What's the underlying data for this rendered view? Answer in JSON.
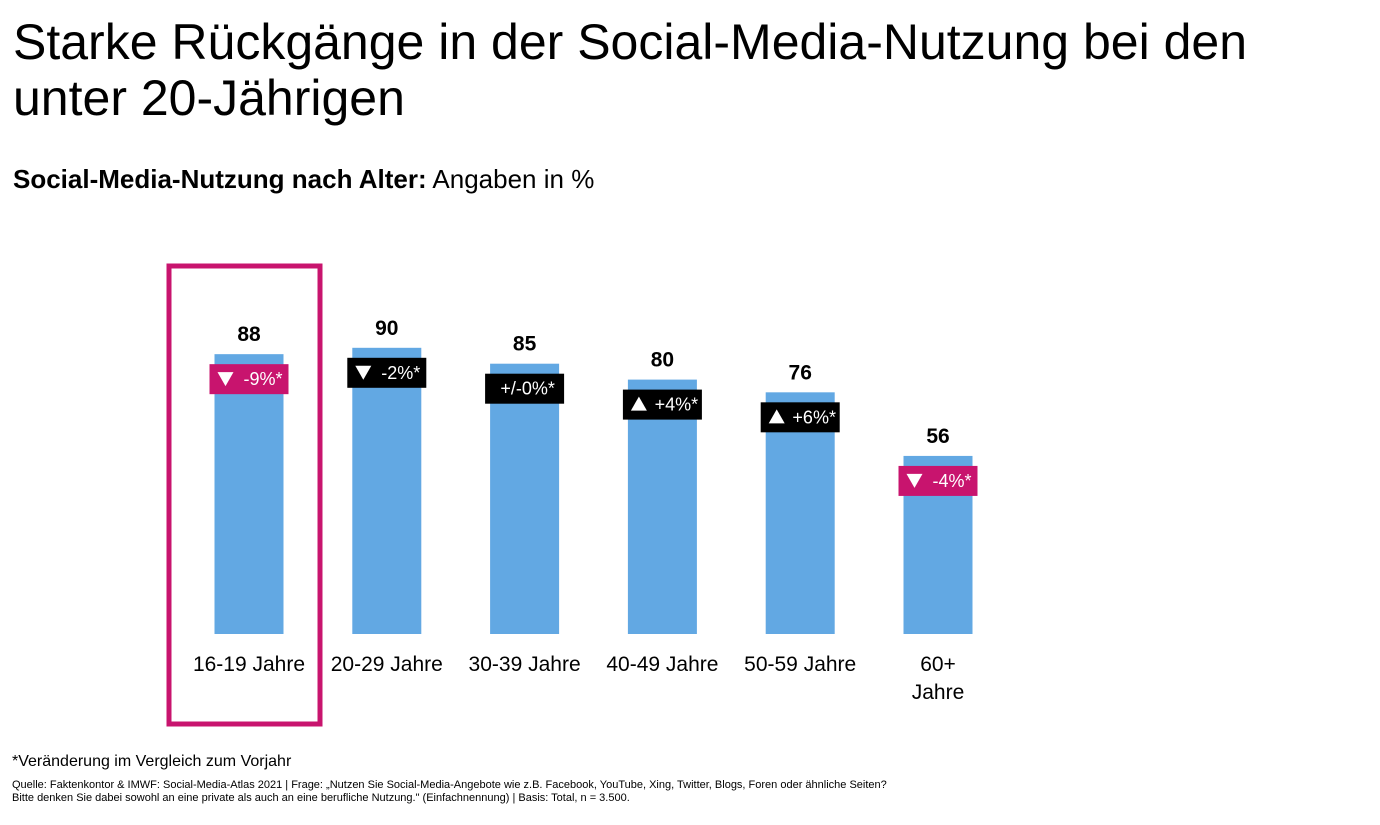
{
  "title": "Starke Rückgänge in der Social-Media-Nutzung bei den unter 20-Jährigen",
  "subtitle": {
    "bold": "Social-Media-Nutzung nach Alter:",
    "normal": " Angaben in %"
  },
  "footnote": "*Veränderung im Vergleich zum Vorjahr",
  "source": {
    "line1": "Quelle: Faktenkontor & IMWF: Social-Media-Atlas 2021 | Frage: „Nutzen Sie Social-Media-Angebote wie z.B. Facebook, YouTube, Xing, Twitter, Blogs, Foren oder ähnliche Seiten?",
    "line2": "Bitte denken Sie dabei sowohl an eine private als auch an eine berufliche Nutzung.\" (Einfachnennung) | Basis: Total, n = 3.500."
  },
  "colors": {
    "bar": "#62a8e3",
    "highlight": "#c8146e",
    "negative_badge": "#c8146e",
    "neutral_badge": "#000000"
  },
  "chart_data": {
    "type": "bar",
    "categories": [
      "16-19 Jahre",
      "20-29 Jahre",
      "30-39 Jahre",
      "40-49 Jahre",
      "50-59 Jahre",
      "60+ Jahre"
    ],
    "category_lines": [
      [
        "16-19 Jahre"
      ],
      [
        "20-29 Jahre"
      ],
      [
        "30-39 Jahre"
      ],
      [
        "40-49 Jahre"
      ],
      [
        "50-59 Jahre"
      ],
      [
        "60+",
        "Jahre"
      ]
    ],
    "values": [
      88,
      90,
      85,
      80,
      76,
      56
    ],
    "changes": [
      {
        "label": "-9%",
        "direction": "down",
        "badge": "magenta"
      },
      {
        "label": "-2%",
        "direction": "down",
        "badge": "black"
      },
      {
        "label": "+/-0%",
        "direction": "none",
        "badge": "black"
      },
      {
        "label": "+4%",
        "direction": "up",
        "badge": "black"
      },
      {
        "label": "+6%",
        "direction": "up",
        "badge": "black"
      },
      {
        "label": "-4%",
        "direction": "down",
        "badge": "magenta"
      }
    ],
    "change_marker": "*",
    "highlighted_category": "16-19 Jahre",
    "ylim": [
      0,
      100
    ],
    "grid": false,
    "legend": "none"
  }
}
